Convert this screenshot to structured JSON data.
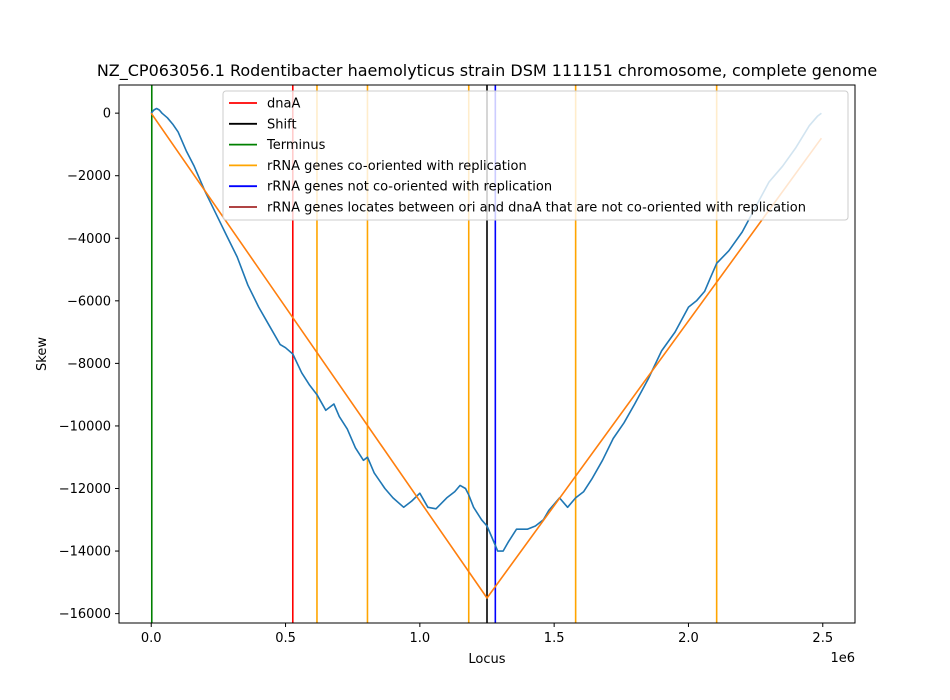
{
  "chart_data": {
    "type": "line",
    "title": "NZ_CP063056.1 Rodentibacter haemolyticus strain DSM 111151 chromosome, complete genome",
    "xlabel": "Locus",
    "ylabel": "Skew",
    "x_offset_label": "1e6",
    "xlim": [
      -120000,
      2620000
    ],
    "ylim": [
      -16300,
      900
    ],
    "xticks": [
      0,
      500000,
      1000000,
      1500000,
      2000000,
      2500000
    ],
    "xtick_labels": [
      "0.0",
      "0.5",
      "1.0",
      "1.5",
      "2.0",
      "2.5"
    ],
    "yticks": [
      0,
      -2000,
      -4000,
      -6000,
      -8000,
      -10000,
      -12000,
      -14000,
      -16000
    ],
    "ytick_labels": [
      "0",
      "−2000",
      "−4000",
      "−6000",
      "−8000",
      "−10000",
      "−12000",
      "−14000",
      "−16000"
    ],
    "grid": false,
    "legend_position": "top-center",
    "legend": [
      {
        "label": "dnaA",
        "color": "#ff0000"
      },
      {
        "label": "Shift",
        "color": "#000000"
      },
      {
        "label": "Terminus",
        "color": "#008000"
      },
      {
        "label": "rRNA genes co-oriented with replication",
        "color": "#ffa500"
      },
      {
        "label": "rRNA genes not co-oriented with replication",
        "color": "#0000ff"
      },
      {
        "label": "rRNA genes locates between ori and dnaA that are not co-oriented with replication",
        "color": "#a52a2a"
      }
    ],
    "vertical_lines": [
      {
        "type": "Terminus",
        "x": 2000,
        "color": "#008000"
      },
      {
        "type": "dnaA",
        "x": 527000,
        "color": "#ff0000"
      },
      {
        "type": "rRNA co-oriented",
        "x": 617000,
        "color": "#ffa500"
      },
      {
        "type": "rRNA co-oriented",
        "x": 805000,
        "color": "#ffa500"
      },
      {
        "type": "rRNA co-oriented",
        "x": 1182000,
        "color": "#ffa500"
      },
      {
        "type": "Shift",
        "x": 1250000,
        "color": "#000000"
      },
      {
        "type": "rRNA not co-oriented",
        "x": 1281000,
        "color": "#0000ff"
      },
      {
        "type": "rRNA co-oriented",
        "x": 1580000,
        "color": "#ffa500"
      },
      {
        "type": "rRNA co-oriented",
        "x": 2105000,
        "color": "#ffa500"
      }
    ],
    "series": [
      {
        "color": "#1f77b4",
        "x": [
          0,
          10000,
          20000,
          30000,
          40000,
          60000,
          80000,
          100000,
          130000,
          160000,
          200000,
          240000,
          280000,
          320000,
          360000,
          400000,
          440000,
          480000,
          500000,
          527000,
          560000,
          590000,
          617000,
          650000,
          680000,
          700000,
          730000,
          760000,
          790000,
          805000,
          830000,
          870000,
          900000,
          940000,
          970000,
          1000000,
          1030000,
          1060000,
          1100000,
          1130000,
          1150000,
          1170000,
          1182000,
          1200000,
          1230000,
          1250000,
          1270000,
          1290000,
          1310000,
          1330000,
          1360000,
          1400000,
          1430000,
          1460000,
          1480000,
          1500000,
          1520000,
          1550000,
          1580000,
          1610000,
          1640000,
          1680000,
          1720000,
          1760000,
          1800000,
          1850000,
          1900000,
          1950000,
          2000000,
          2030000,
          2060000,
          2080000,
          2105000,
          2150000,
          2200000,
          2250000,
          2300000,
          2350000,
          2400000,
          2450000,
          2480000,
          2495000
        ],
        "y": [
          0,
          100,
          150,
          100,
          0,
          -150,
          -350,
          -600,
          -1200,
          -1700,
          -2500,
          -3200,
          -3900,
          -4600,
          -5500,
          -6200,
          -6800,
          -7400,
          -7500,
          -7700,
          -8300,
          -8700,
          -9000,
          -9500,
          -9300,
          -9700,
          -10100,
          -10700,
          -11100,
          -11000,
          -11500,
          -12000,
          -12300,
          -12600,
          -12400,
          -12150,
          -12600,
          -12650,
          -12300,
          -12100,
          -11900,
          -12000,
          -12200,
          -12600,
          -13000,
          -13200,
          -13600,
          -14000,
          -14000,
          -13700,
          -13300,
          -13300,
          -13200,
          -13000,
          -12700,
          -12500,
          -12300,
          -12600,
          -12300,
          -12100,
          -11700,
          -11100,
          -10400,
          -9900,
          -9300,
          -8500,
          -7600,
          -7000,
          -6200,
          -6000,
          -5700,
          -5300,
          -4800,
          -4400,
          -3800,
          -3000,
          -2200,
          -1700,
          -1100,
          -400,
          -100,
          0
        ]
      },
      {
        "color": "#ff7f0e",
        "x": [
          0,
          1250000,
          2495000
        ],
        "y": [
          0,
          -15500,
          -800
        ]
      }
    ]
  }
}
